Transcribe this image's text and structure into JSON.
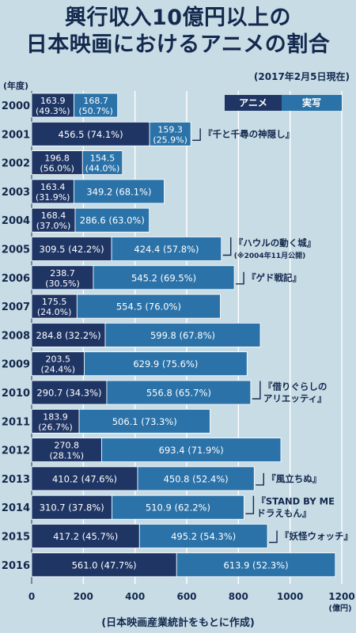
{
  "title_lines": [
    "興行収入10億円以上の",
    "日本映画におけるアニメの割合"
  ],
  "as_of": "(2017年2月5日現在)",
  "source": "(日本映画産業統計をもとに作成)",
  "colors": {
    "anime": "#1f3564",
    "live_action": "#2a72a8",
    "background": "#c8dce6"
  },
  "chart_data": {
    "type": "bar",
    "orientation": "horizontal",
    "stacked": true,
    "y_axis_label": "(年度)",
    "x_unit": "(億円)",
    "xlim": [
      0,
      1200
    ],
    "x_ticks": [
      0,
      200,
      400,
      600,
      800,
      1000,
      1200
    ],
    "grid": true,
    "legend_position": "top-right",
    "categories": [
      "2000",
      "2001",
      "2002",
      "2003",
      "2004",
      "2005",
      "2006",
      "2007",
      "2008",
      "2009",
      "2010",
      "2011",
      "2012",
      "2013",
      "2014",
      "2015",
      "2016"
    ],
    "series": [
      {
        "name": "アニメ",
        "values": [
          163.9,
          456.5,
          196.8,
          163.4,
          168.4,
          309.5,
          238.7,
          175.5,
          284.8,
          203.5,
          290.7,
          183.9,
          270.8,
          410.2,
          310.7,
          417.2,
          561.0
        ],
        "labels": [
          [
            "163.9",
            "(49.3%)"
          ],
          [
            "456.5 (74.1%)"
          ],
          [
            "196.8",
            "(56.0%)"
          ],
          [
            "163.4",
            "(31.9%)"
          ],
          [
            "168.4",
            "(37.0%)"
          ],
          [
            "309.5 (42.2%)"
          ],
          [
            "238.7",
            "(30.5%)"
          ],
          [
            "175.5",
            "(24.0%)"
          ],
          [
            "284.8 (32.2%)"
          ],
          [
            "203.5",
            "(24.4%)"
          ],
          [
            "290.7 (34.3%)"
          ],
          [
            "183.9",
            "(26.7%)"
          ],
          [
            "270.8",
            "(28.1%)"
          ],
          [
            "410.2 (47.6%)"
          ],
          [
            "310.7 (37.8%)"
          ],
          [
            "417.2 (45.7%)"
          ],
          [
            "561.0 (47.7%)"
          ]
        ]
      },
      {
        "name": "実写",
        "values": [
          168.7,
          159.3,
          154.5,
          349.2,
          286.6,
          424.4,
          545.2,
          554.5,
          599.8,
          629.9,
          556.8,
          506.1,
          693.4,
          450.8,
          510.9,
          495.2,
          613.9
        ],
        "labels": [
          [
            "168.7",
            "(50.7%)"
          ],
          [
            "159.3",
            "(25.9%)"
          ],
          [
            "154.5",
            "(44.0%)"
          ],
          [
            "349.2 (68.1%)"
          ],
          [
            "286.6 (63.0%)"
          ],
          [
            "424.4 (57.8%)"
          ],
          [
            "545.2 (69.5%)"
          ],
          [
            "554.5 (76.0%)"
          ],
          [
            "599.8 (67.8%)"
          ],
          [
            "629.9 (75.6%)"
          ],
          [
            "556.8 (65.7%)"
          ],
          [
            "506.1 (73.3%)"
          ],
          [
            "693.4 (71.9%)"
          ],
          [
            "450.8 (52.4%)"
          ],
          [
            "510.9 (62.2%)"
          ],
          [
            "495.2 (54.3%)"
          ],
          [
            "613.9 (52.3%)"
          ]
        ]
      }
    ],
    "annotations": [
      {
        "year": "2001",
        "lines": [
          "『千と千尋の神隠し』"
        ]
      },
      {
        "year": "2005",
        "lines": [
          "『ハウルの動く城』",
          "(※2004年11月公開)"
        ]
      },
      {
        "year": "2006",
        "lines": [
          "『ゲド戦記』"
        ]
      },
      {
        "year": "2010",
        "lines": [
          "『借りぐらしの",
          "アリエッティ』"
        ]
      },
      {
        "year": "2013",
        "lines": [
          "『風立ちぬ』"
        ]
      },
      {
        "year": "2014",
        "lines": [
          "『STAND BY ME",
          "ドラえもん』"
        ]
      },
      {
        "year": "2015",
        "lines": [
          "『妖怪ウォッチ』"
        ]
      }
    ]
  }
}
